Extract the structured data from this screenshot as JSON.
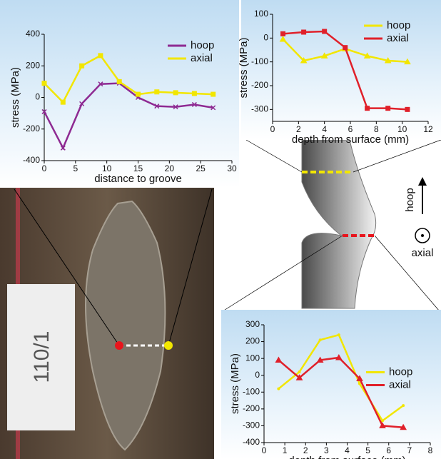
{
  "chart_data": [
    {
      "type": "line",
      "xlabel": "distance to groove",
      "ylabel": "stress (MPa)",
      "x": [
        0,
        3,
        6,
        9,
        12,
        15,
        18,
        21,
        24,
        27
      ],
      "series": [
        {
          "name": "hoop",
          "color": "#8e2a92",
          "marker": "x",
          "values": [
            -90,
            -320,
            -40,
            85,
            90,
            0,
            -55,
            -60,
            -45,
            -65
          ]
        },
        {
          "name": "axial",
          "color": "#f2e600",
          "marker": "square",
          "values": [
            90,
            -30,
            200,
            265,
            100,
            20,
            35,
            30,
            25,
            20
          ]
        }
      ],
      "xlim": [
        0,
        30
      ],
      "xticks": [
        0,
        5,
        10,
        15,
        20,
        25,
        30
      ],
      "ylim": [
        -400,
        400
      ],
      "yticks": [
        -400,
        -200,
        0,
        200,
        400
      ],
      "legend": "upper right"
    },
    {
      "type": "line",
      "xlabel": "depth from surface (mm)",
      "ylabel": "stress (MPa)",
      "x": [
        0.8,
        2.4,
        4,
        5.6,
        7.3,
        8.9,
        10.4
      ],
      "series": [
        {
          "name": "hoop",
          "color": "#f2e600",
          "marker": "triangle",
          "values": [
            -5,
            -95,
            -75,
            -45,
            -75,
            -95,
            -100
          ]
        },
        {
          "name": "axial",
          "color": "#e0202a",
          "marker": "square",
          "values": [
            18,
            25,
            28,
            -40,
            -295,
            -295,
            -300
          ]
        }
      ],
      "xlim": [
        0,
        12
      ],
      "xticks": [
        0,
        2,
        4,
        6,
        8,
        10,
        12
      ],
      "ylim": [
        -350,
        100
      ],
      "yticks": [
        -300,
        -200,
        -100,
        0,
        100
      ],
      "legend": "upper right"
    },
    {
      "type": "line",
      "xlabel": "depth from surface (mm)",
      "ylabel": "stress (MPa)",
      "x": [
        0.7,
        1.7,
        2.7,
        3.6,
        4.6,
        5.7,
        6.7
      ],
      "series": [
        {
          "name": "hoop",
          "color": "#f2e600",
          "marker": "none",
          "values": [
            -80,
            20,
            210,
            240,
            -50,
            -270,
            -180
          ]
        },
        {
          "name": "axial",
          "color": "#e0202a",
          "marker": "triangle",
          "values": [
            90,
            -15,
            90,
            105,
            -20,
            -300,
            -310
          ]
        }
      ],
      "xlim": [
        0,
        8
      ],
      "xticks": [
        0,
        1,
        2,
        3,
        4,
        5,
        6,
        7,
        8
      ],
      "ylim": [
        -400,
        300
      ],
      "yticks": [
        -400,
        -300,
        -200,
        -100,
        0,
        100,
        200,
        300
      ],
      "legend": "center right"
    }
  ],
  "labels": {
    "hoop": "hoop",
    "axial": "axial",
    "sample_tag": "110/1"
  }
}
